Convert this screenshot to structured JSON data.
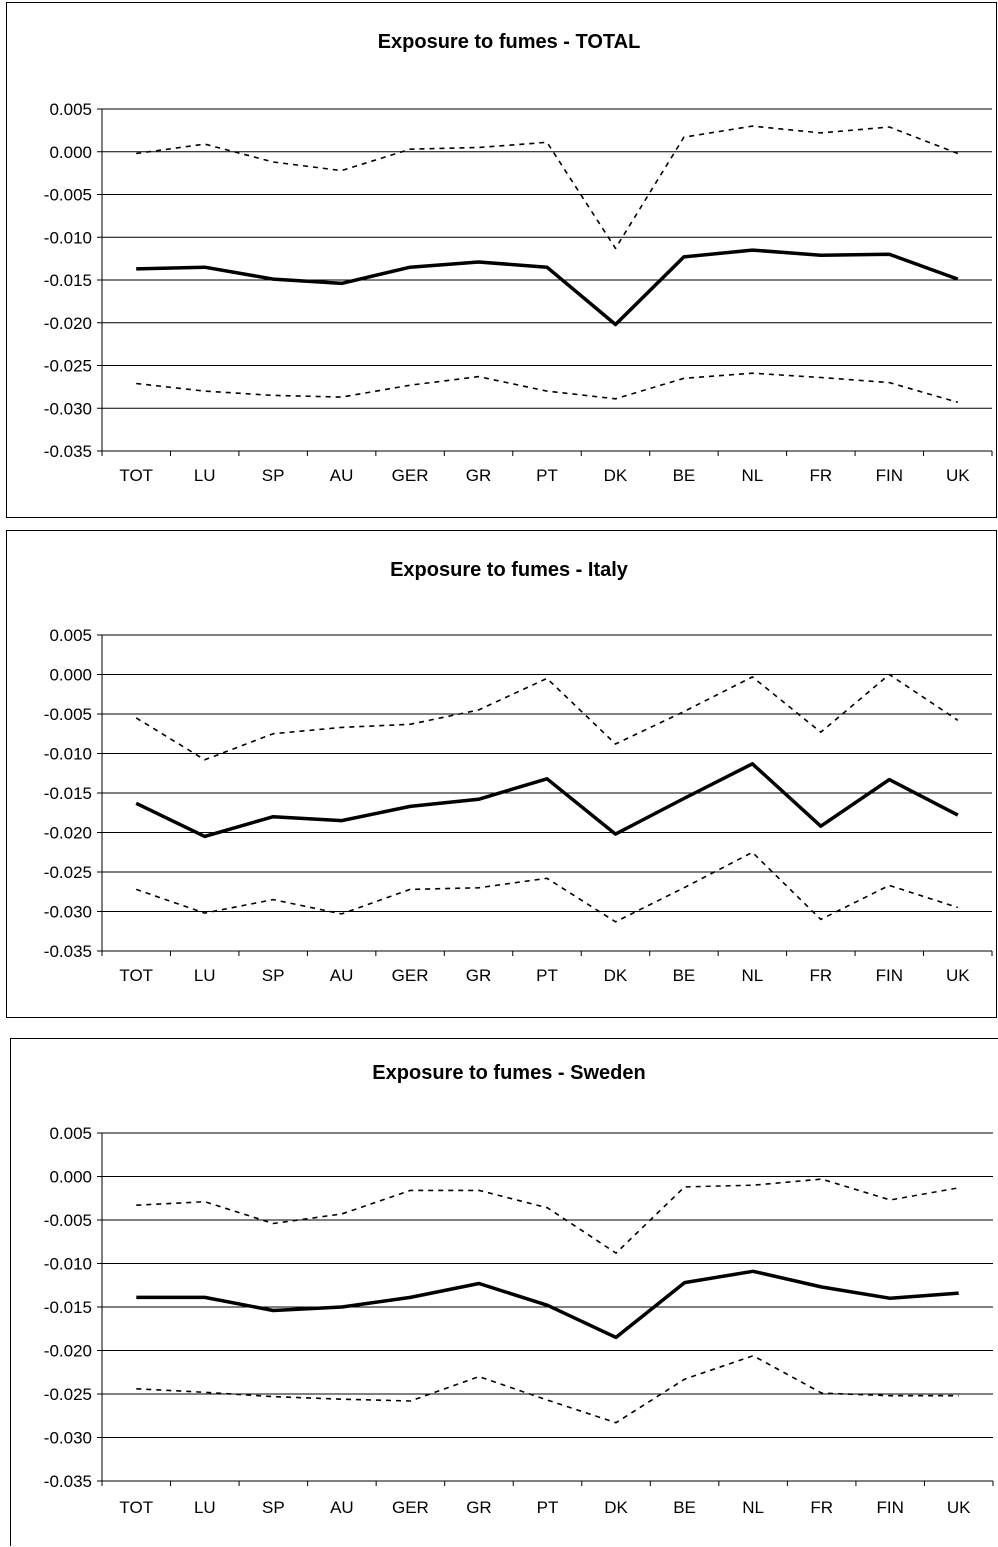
{
  "chart_data": [
    {
      "type": "line",
      "title": "Exposure to fumes - TOTAL",
      "categories": [
        "TOT",
        "LU",
        "SP",
        "AU",
        "GER",
        "GR",
        "PT",
        "DK",
        "BE",
        "NL",
        "FR",
        "FIN",
        "UK"
      ],
      "ylim": [
        -0.035,
        0.005
      ],
      "yticks": [
        "0.005",
        "0.000",
        "-0.005",
        "-0.010",
        "-0.015",
        "-0.020",
        "-0.025",
        "-0.030",
        "-0.035"
      ],
      "grid": true,
      "series": [
        {
          "style": "solid",
          "values": [
            -0.0137,
            -0.0135,
            -0.0149,
            -0.0154,
            -0.0135,
            -0.0129,
            -0.0135,
            -0.0202,
            -0.0123,
            -0.0115,
            -0.0121,
            -0.012,
            -0.0149
          ]
        },
        {
          "style": "dotted",
          "values": [
            -0.0002,
            0.0009,
            -0.0012,
            -0.0022,
            0.0003,
            0.0005,
            0.0011,
            -0.0113,
            0.0017,
            0.003,
            0.0022,
            0.0029,
            -0.0002
          ]
        },
        {
          "style": "dotted",
          "values": [
            -0.0271,
            -0.028,
            -0.0285,
            -0.0287,
            -0.0273,
            -0.0263,
            -0.028,
            -0.0289,
            -0.0265,
            -0.0259,
            -0.0264,
            -0.027,
            -0.0293
          ]
        }
      ]
    },
    {
      "type": "line",
      "title": "Exposure to fumes - Italy",
      "categories": [
        "TOT",
        "LU",
        "SP",
        "AU",
        "GER",
        "GR",
        "PT",
        "DK",
        "BE",
        "NL",
        "FR",
        "FIN",
        "UK"
      ],
      "ylim": [
        -0.035,
        0.005
      ],
      "yticks": [
        "0.005",
        "0.000",
        "-0.005",
        "-0.010",
        "-0.015",
        "-0.020",
        "-0.025",
        "-0.030",
        "-0.035"
      ],
      "grid": true,
      "series": [
        {
          "style": "solid",
          "values": [
            -0.0163,
            -0.0205,
            -0.018,
            -0.0185,
            -0.0167,
            -0.0158,
            -0.0132,
            -0.0202,
            -0.0157,
            -0.0113,
            -0.0192,
            -0.0133,
            -0.0178
          ]
        },
        {
          "style": "dotted",
          "values": [
            -0.0055,
            -0.0108,
            -0.0075,
            -0.0067,
            -0.0063,
            -0.0045,
            -0.0005,
            -0.0088,
            -0.0047,
            -0.0003,
            -0.0073,
            0.0,
            -0.0058
          ]
        },
        {
          "style": "dotted",
          "values": [
            -0.0272,
            -0.0302,
            -0.0285,
            -0.0303,
            -0.0272,
            -0.027,
            -0.0258,
            -0.0313,
            -0.027,
            -0.0225,
            -0.031,
            -0.0267,
            -0.0295
          ]
        }
      ]
    },
    {
      "type": "line",
      "title": "Exposure to fumes - Sweden",
      "categories": [
        "TOT",
        "LU",
        "SP",
        "AU",
        "GER",
        "GR",
        "PT",
        "DK",
        "BE",
        "NL",
        "FR",
        "FIN",
        "UK"
      ],
      "ylim": [
        -0.035,
        0.005
      ],
      "yticks": [
        "0.005",
        "0.000",
        "-0.005",
        "-0.010",
        "-0.015",
        "-0.020",
        "-0.025",
        "-0.030",
        "-0.035"
      ],
      "grid": true,
      "series": [
        {
          "style": "solid",
          "values": [
            -0.0139,
            -0.0139,
            -0.0154,
            -0.015,
            -0.0139,
            -0.0123,
            -0.0148,
            -0.0185,
            -0.0122,
            -0.0109,
            -0.0127,
            -0.014,
            -0.0134
          ]
        },
        {
          "style": "dotted",
          "values": [
            -0.0033,
            -0.0029,
            -0.0054,
            -0.0043,
            -0.0016,
            -0.0016,
            -0.0036,
            -0.0088,
            -0.0012,
            -0.001,
            -0.0003,
            -0.0027,
            -0.0013
          ]
        },
        {
          "style": "dotted",
          "values": [
            -0.0244,
            -0.0248,
            -0.0253,
            -0.0256,
            -0.0258,
            -0.023,
            -0.0257,
            -0.0283,
            -0.0233,
            -0.0206,
            -0.0249,
            -0.0252,
            -0.0252
          ]
        }
      ]
    }
  ]
}
